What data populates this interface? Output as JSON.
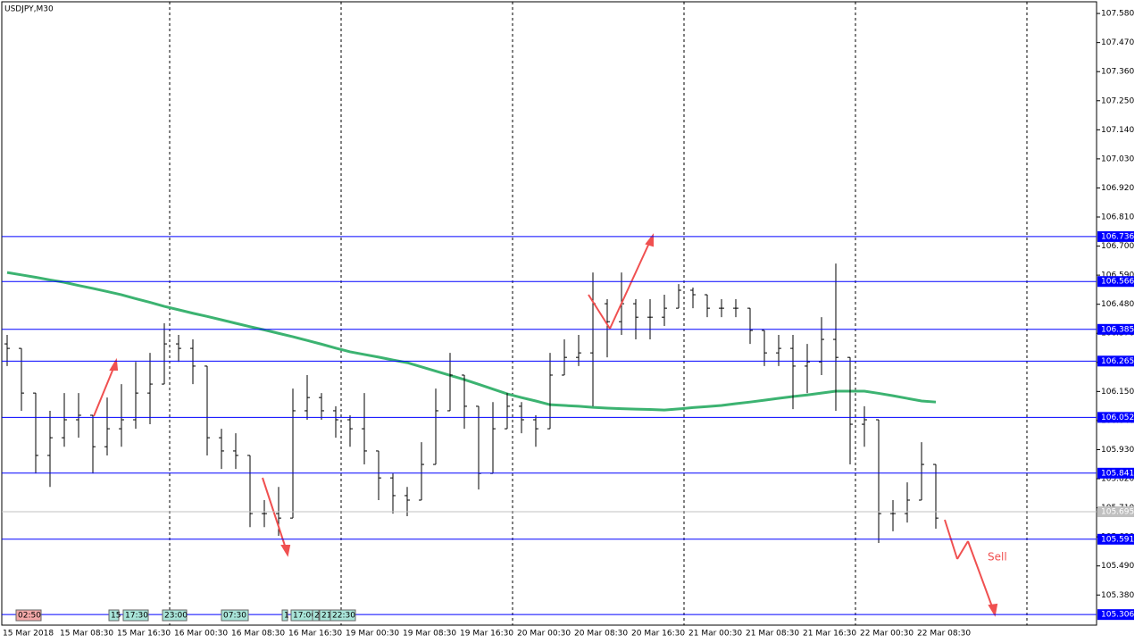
{
  "chart_data": {
    "type": "ohlc",
    "title": "USDJPY,M30",
    "ylim": [
      105.266,
      107.631
    ],
    "yticks": [
      {
        "value": 107.58,
        "label": "107.580"
      },
      {
        "value": 107.47,
        "label": "107.470"
      },
      {
        "value": 107.36,
        "label": "107.360"
      },
      {
        "value": 107.25,
        "label": "107.250"
      },
      {
        "value": 107.14,
        "label": "107.140"
      },
      {
        "value": 107.03,
        "label": "107.030"
      },
      {
        "value": 106.92,
        "label": "106.920"
      },
      {
        "value": 106.81,
        "label": "106.810"
      },
      {
        "value": 106.7,
        "label": "106.700"
      },
      {
        "value": 106.59,
        "label": "106.590"
      },
      {
        "value": 106.48,
        "label": "106.480"
      },
      {
        "value": 106.37,
        "label": "106.370"
      },
      {
        "value": 106.26,
        "label": "106.260"
      },
      {
        "value": 106.15,
        "label": "106.150"
      },
      {
        "value": 106.04,
        "label": "106.040"
      },
      {
        "value": 105.93,
        "label": "105.930"
      },
      {
        "value": 105.82,
        "label": "105.820"
      },
      {
        "value": 105.71,
        "label": "105.710"
      },
      {
        "value": 105.6,
        "label": "105.600"
      },
      {
        "value": 105.49,
        "label": "105.490"
      },
      {
        "value": 105.38,
        "label": "105.380"
      }
    ],
    "bar_color": "#000000",
    "ohlc": [
      [
        106.33,
        106.364,
        106.246,
        106.313
      ],
      [
        106.313,
        106.313,
        106.077,
        106.144
      ],
      [
        106.144,
        106.144,
        105.84,
        105.908
      ],
      [
        105.908,
        106.077,
        105.789,
        105.975
      ],
      [
        105.975,
        106.144,
        105.941,
        106.043
      ],
      [
        106.043,
        106.144,
        105.975,
        106.06
      ],
      [
        106.06,
        106.06,
        105.84,
        105.941
      ],
      [
        105.941,
        106.127,
        105.908,
        106.009
      ],
      [
        106.009,
        106.178,
        105.941,
        106.043
      ],
      [
        106.043,
        106.262,
        106.009,
        106.144
      ],
      [
        106.144,
        106.296,
        106.026,
        106.178
      ],
      [
        106.178,
        106.408,
        106.178,
        106.33
      ],
      [
        106.33,
        106.364,
        106.262,
        106.313
      ],
      [
        106.313,
        106.347,
        106.178,
        106.246
      ],
      [
        106.246,
        106.246,
        105.908,
        105.975
      ],
      [
        105.975,
        106.009,
        105.857,
        105.925
      ],
      [
        105.925,
        105.992,
        105.857,
        105.908
      ],
      [
        105.908,
        105.908,
        105.637,
        105.688
      ],
      [
        105.688,
        105.739,
        105.637,
        105.688
      ],
      [
        105.688,
        105.789,
        105.604,
        105.671
      ],
      [
        105.671,
        106.161,
        105.671,
        106.077
      ],
      [
        106.077,
        106.212,
        106.043,
        106.127
      ],
      [
        106.127,
        106.144,
        106.043,
        106.077
      ],
      [
        106.077,
        106.094,
        105.975,
        106.043
      ],
      [
        106.043,
        106.06,
        105.941,
        106.009
      ],
      [
        106.009,
        106.144,
        105.874,
        105.925
      ],
      [
        105.925,
        105.925,
        105.739,
        105.823
      ],
      [
        105.823,
        105.84,
        105.688,
        105.756
      ],
      [
        105.756,
        105.789,
        105.678,
        105.739
      ],
      [
        105.739,
        105.958,
        105.739,
        105.874
      ],
      [
        105.874,
        106.161,
        105.874,
        106.077
      ],
      [
        106.077,
        106.296,
        106.077,
        106.212
      ],
      [
        106.212,
        106.212,
        106.009,
        106.094
      ],
      [
        106.094,
        106.094,
        105.779,
        105.84
      ],
      [
        105.84,
        106.11,
        105.84,
        106.009
      ],
      [
        106.009,
        106.144,
        106.009,
        106.094
      ],
      [
        106.094,
        106.11,
        105.992,
        106.043
      ],
      [
        106.043,
        106.06,
        105.941,
        106.009
      ],
      [
        106.009,
        106.296,
        106.009,
        106.212
      ],
      [
        106.212,
        106.347,
        106.212,
        106.279
      ],
      [
        106.279,
        106.364,
        106.246,
        106.296
      ],
      [
        106.296,
        106.6,
        106.094,
        106.482
      ],
      [
        106.482,
        106.499,
        106.279,
        106.414
      ],
      [
        106.414,
        106.6,
        106.364,
        106.482
      ],
      [
        106.482,
        106.499,
        106.347,
        106.431
      ],
      [
        106.431,
        106.499,
        106.347,
        106.431
      ],
      [
        106.431,
        106.516,
        106.398,
        106.465
      ],
      [
        106.465,
        106.556,
        106.465,
        106.533
      ],
      [
        106.533,
        106.543,
        106.465,
        106.516
      ],
      [
        106.516,
        106.516,
        106.431,
        106.465
      ],
      [
        106.465,
        106.499,
        106.431,
        106.465
      ],
      [
        106.465,
        106.499,
        106.431,
        106.465
      ],
      [
        106.465,
        106.465,
        106.33,
        106.381
      ],
      [
        106.381,
        106.381,
        106.246,
        106.296
      ],
      [
        106.296,
        106.364,
        106.246,
        106.313
      ],
      [
        106.313,
        106.364,
        106.083,
        106.246
      ],
      [
        106.246,
        106.33,
        106.144,
        106.262
      ],
      [
        106.262,
        106.431,
        106.212,
        106.347
      ],
      [
        106.347,
        106.634,
        106.077,
        106.279
      ],
      [
        106.279,
        106.279,
        105.874,
        106.026
      ],
      [
        106.026,
        106.094,
        105.941,
        106.043
      ],
      [
        106.043,
        106.043,
        105.577,
        105.688
      ],
      [
        105.688,
        105.739,
        105.621,
        105.688
      ],
      [
        105.688,
        105.806,
        105.654,
        105.739
      ],
      [
        105.739,
        105.958,
        105.739,
        105.874
      ],
      [
        105.874,
        105.874,
        105.631,
        105.671
      ]
    ],
    "ma": {
      "color": "#3cb371",
      "values": [
        106.6,
        106.591,
        106.582,
        106.572,
        106.563,
        106.551,
        106.54,
        106.528,
        106.516,
        106.501,
        106.487,
        106.472,
        106.459,
        106.446,
        106.434,
        106.421,
        106.408,
        106.395,
        106.383,
        106.37,
        106.357,
        106.343,
        106.329,
        106.314,
        106.3,
        106.29,
        106.28,
        106.269,
        106.259,
        106.243,
        106.227,
        106.211,
        106.195,
        106.177,
        106.159,
        106.141,
        106.127,
        106.114,
        106.1,
        106.097,
        106.094,
        106.09,
        106.087,
        106.085,
        106.083,
        106.082,
        106.08,
        106.084,
        106.089,
        106.093,
        106.097,
        106.104,
        106.11,
        106.117,
        106.124,
        106.131,
        106.137,
        106.144,
        106.151,
        106.151,
        106.151,
        106.143,
        106.134,
        106.124,
        106.114,
        106.11
      ]
    },
    "level_color": "#0000ff",
    "levels": [
      106.736,
      106.566,
      106.385,
      106.265,
      106.052,
      105.841,
      105.591,
      105.306
    ],
    "current_price": 105.695,
    "time_labels": [
      "15 Mar 2018",
      "15 Mar 08:30",
      "15 Mar 16:30",
      "16 Mar 00:30",
      "16 Mar 08:30",
      "16 Mar 16:30",
      "19 Mar 00:30",
      "19 Mar 08:30",
      "19 Mar 16:30",
      "20 Mar 00:30",
      "20 Mar 08:30",
      "20 Mar 16:30",
      "21 Mar 00:30",
      "21 Mar 08:30",
      "21 Mar 16:30",
      "22 Mar 00:30",
      "22 Mar 08:30"
    ],
    "tags": [
      "02:50",
      "15",
      "17:30",
      "23:00",
      "07:30",
      "1",
      "17:00",
      "2",
      "21",
      "22:30"
    ],
    "annotation": "Sell"
  }
}
